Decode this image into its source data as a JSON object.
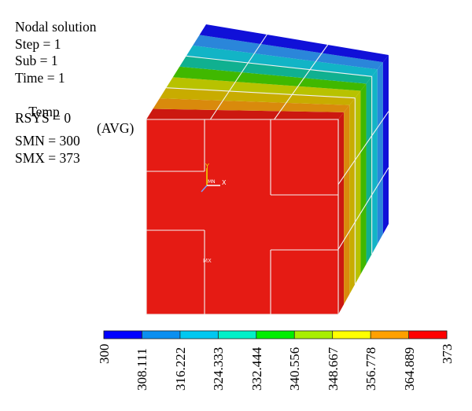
{
  "info": {
    "title": "Nodal solution",
    "step": "Step = 1",
    "sub": "Sub = 1",
    "time": "Time = 1",
    "quantity": "Temp",
    "avg": "(AVG)",
    "rsys": "RSYS = 0",
    "smn": "SMN = 300",
    "smx": "SMX = 373"
  },
  "triad": {
    "y": "Y",
    "x": "X",
    "origin": "MN"
  },
  "marker": "MX",
  "legend": {
    "labels": [
      "300",
      "308.111",
      "316.222",
      "324.333",
      "332.444",
      "340.556",
      "348.667",
      "356.778",
      "364.889",
      "373"
    ],
    "colors": [
      "#0000ff",
      "#0b8ff0",
      "#00c8f0",
      "#00f0c8",
      "#00ee00",
      "#a8ee00",
      "#ffff00",
      "#ffa000",
      "#ff0000"
    ]
  },
  "contour_colors": {
    "front": "#e51b14",
    "top_bands": [
      "#cc1810",
      "#d98a0c",
      "#c8ac00",
      "#b8c200",
      "#40b800",
      "#10b090",
      "#12b4c6",
      "#2a86da",
      "#1010d8"
    ],
    "side_bands": [
      "#cc1810",
      "#d98a0c",
      "#c8ac00",
      "#b8c200",
      "#40b800",
      "#10b090",
      "#12b4c6",
      "#2a86da",
      "#1010d8"
    ]
  }
}
